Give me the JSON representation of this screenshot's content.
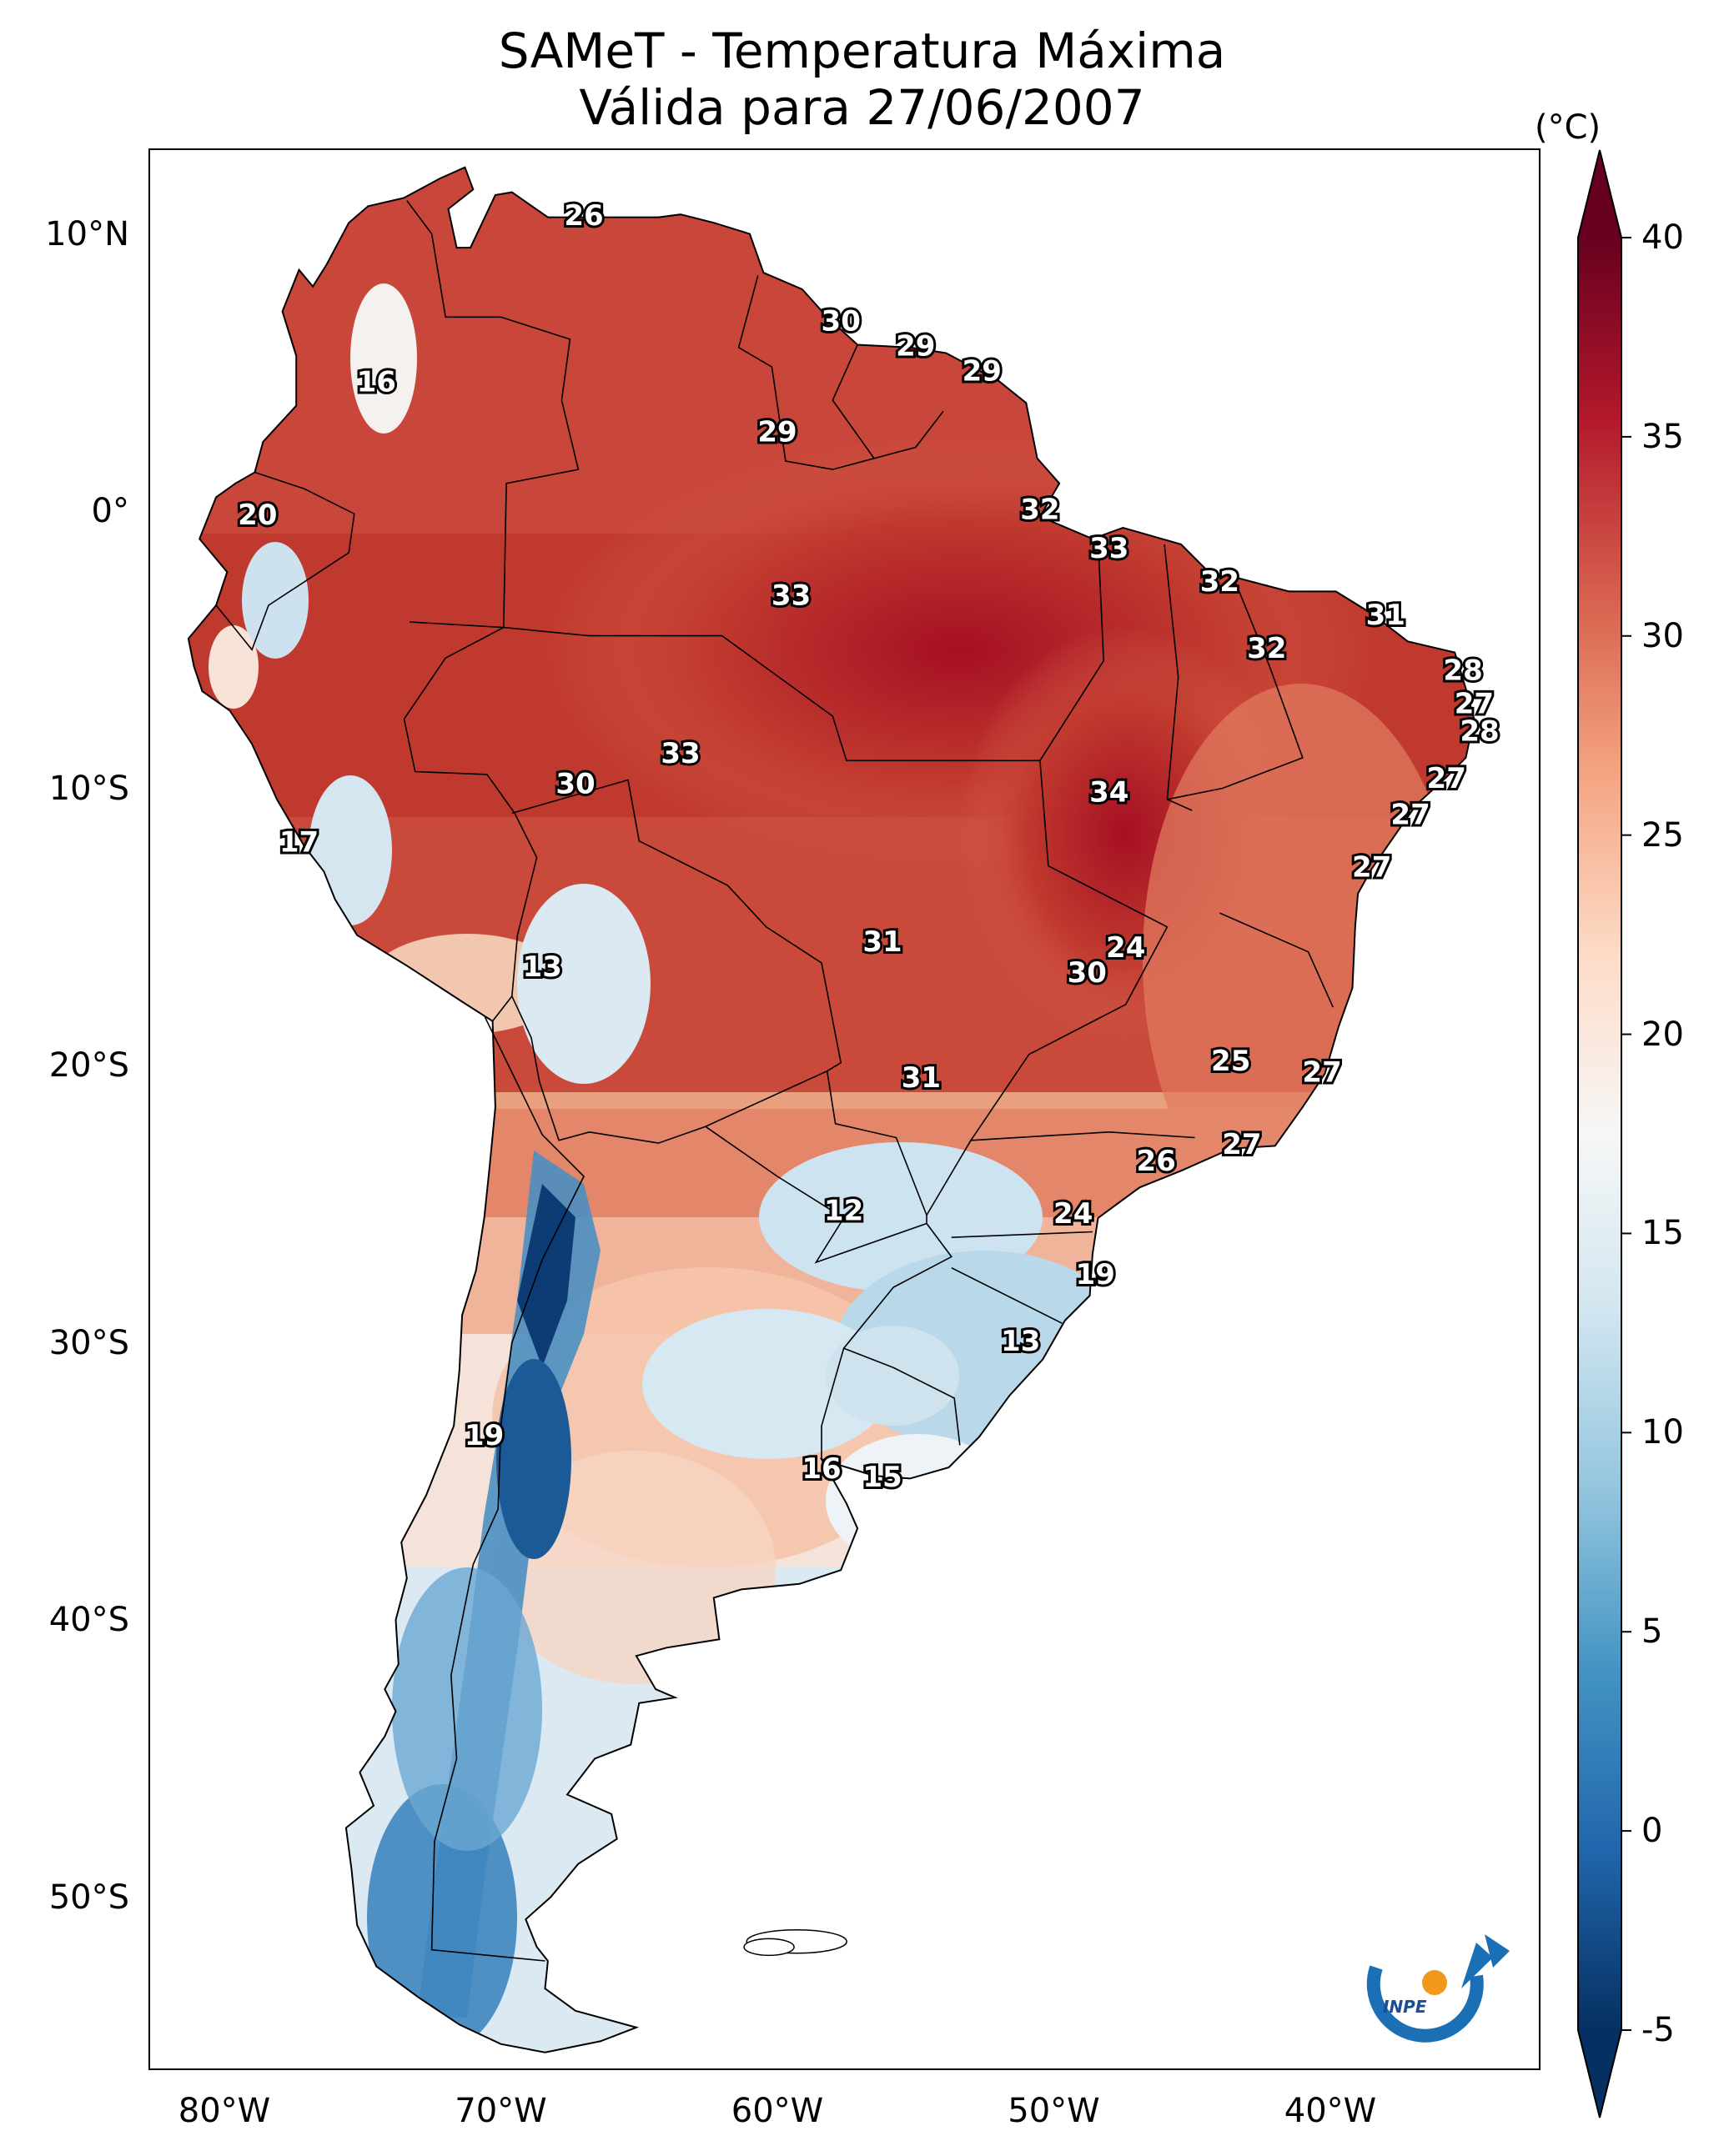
{
  "title": {
    "line1": "SAMeT - Temperatura Máxima",
    "line2": "Válida para 27/06/2007"
  },
  "colorbar": {
    "unit": "(°C)",
    "ticks": [
      "40",
      "35",
      "30",
      "25",
      "20",
      "15",
      "10",
      "5",
      "0",
      "-5"
    ],
    "colors": [
      "#053061",
      "#2166ac",
      "#4393c3",
      "#92c5de",
      "#d1e5f0",
      "#f7f7f7",
      "#fddbc7",
      "#f4a582",
      "#d6604d",
      "#b2182b",
      "#67001f"
    ]
  },
  "axes": {
    "lat_labels": [
      "10°N",
      "0°",
      "10°S",
      "20°S",
      "30°S",
      "40°S",
      "50°S"
    ],
    "lon_labels": [
      "80°W",
      "70°W",
      "60°W",
      "50°W",
      "40°W"
    ]
  },
  "logo": {
    "text": "INPE"
  },
  "station_labels": [
    {
      "v": "26",
      "lon": -67.0,
      "lat": 10.6
    },
    {
      "v": "16",
      "lon": -74.5,
      "lat": 4.6
    },
    {
      "v": "30",
      "lon": -57.7,
      "lat": 6.8
    },
    {
      "v": "29",
      "lon": -55.0,
      "lat": 5.9
    },
    {
      "v": "29",
      "lon": -52.6,
      "lat": 5.0
    },
    {
      "v": "29",
      "lon": -60.0,
      "lat": 2.8
    },
    {
      "v": "20",
      "lon": -78.8,
      "lat": -0.2
    },
    {
      "v": "32",
      "lon": -50.5,
      "lat": 0.0
    },
    {
      "v": "33",
      "lon": -48.0,
      "lat": -1.4
    },
    {
      "v": "32",
      "lon": -44.0,
      "lat": -2.6
    },
    {
      "v": "31",
      "lon": -38.0,
      "lat": -3.8
    },
    {
      "v": "33",
      "lon": -59.5,
      "lat": -3.1
    },
    {
      "v": "32",
      "lon": -42.3,
      "lat": -5.0
    },
    {
      "v": "28",
      "lon": -35.2,
      "lat": -5.8
    },
    {
      "v": "27",
      "lon": -34.8,
      "lat": -7.0
    },
    {
      "v": "28",
      "lon": -34.6,
      "lat": -8.0
    },
    {
      "v": "33",
      "lon": -63.5,
      "lat": -8.8
    },
    {
      "v": "30",
      "lon": -67.3,
      "lat": -9.9
    },
    {
      "v": "34",
      "lon": -48.0,
      "lat": -10.2
    },
    {
      "v": "27",
      "lon": -35.8,
      "lat": -9.7
    },
    {
      "v": "27",
      "lon": -37.1,
      "lat": -11.0
    },
    {
      "v": "17",
      "lon": -77.3,
      "lat": -12.0
    },
    {
      "v": "27",
      "lon": -38.5,
      "lat": -12.9
    },
    {
      "v": "24",
      "lon": -47.4,
      "lat": -15.8
    },
    {
      "v": "31",
      "lon": -56.2,
      "lat": -15.6
    },
    {
      "v": "30",
      "lon": -48.8,
      "lat": -16.7
    },
    {
      "v": "13",
      "lon": -68.5,
      "lat": -16.5
    },
    {
      "v": "25",
      "lon": -43.6,
      "lat": -19.9
    },
    {
      "v": "27",
      "lon": -40.3,
      "lat": -20.3
    },
    {
      "v": "31",
      "lon": -54.8,
      "lat": -20.5
    },
    {
      "v": "27",
      "lon": -43.2,
      "lat": -22.9
    },
    {
      "v": "26",
      "lon": -46.3,
      "lat": -23.5
    },
    {
      "v": "12",
      "lon": -57.6,
      "lat": -25.3
    },
    {
      "v": "24",
      "lon": -49.3,
      "lat": -25.4
    },
    {
      "v": "19",
      "lon": -48.5,
      "lat": -27.6
    },
    {
      "v": "13",
      "lon": -51.2,
      "lat": -30.0
    },
    {
      "v": "19",
      "lon": -70.6,
      "lat": -33.4
    },
    {
      "v": "16",
      "lon": -58.4,
      "lat": -34.6
    },
    {
      "v": "15",
      "lon": -56.2,
      "lat": -34.9
    }
  ]
}
